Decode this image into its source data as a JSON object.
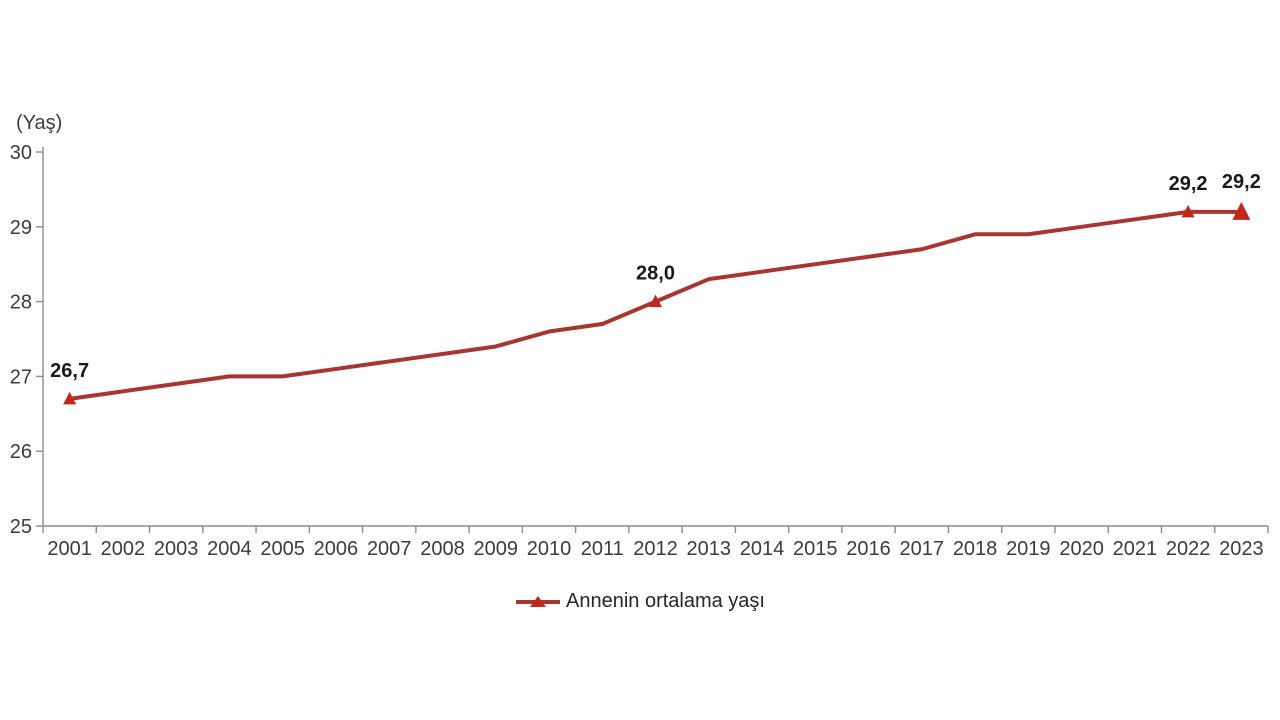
{
  "chart_data": {
    "type": "line",
    "title": "",
    "ylabel": "(Yaş)",
    "xlabel": "",
    "grid": false,
    "legend_position": "bottom-center",
    "ylim": [
      25,
      30
    ],
    "yticks": [
      25,
      26,
      27,
      28,
      29,
      30
    ],
    "categories": [
      "2001",
      "2002",
      "2003",
      "2004",
      "2005",
      "2006",
      "2007",
      "2008",
      "2009",
      "2010",
      "2011",
      "2012",
      "2013",
      "2014",
      "2015",
      "2016",
      "2017",
      "2018",
      "2019",
      "2020",
      "2021",
      "2022",
      "2023"
    ],
    "series": [
      {
        "name": "Annenin ortalama yaşı",
        "values": [
          26.7,
          26.8,
          26.9,
          27.0,
          27.0,
          27.1,
          27.2,
          27.3,
          27.4,
          27.6,
          27.7,
          28.0,
          28.3,
          28.4,
          28.5,
          28.6,
          28.7,
          28.9,
          28.9,
          29.0,
          29.1,
          29.2,
          29.2
        ]
      }
    ],
    "labeled_points": [
      {
        "year": "2001",
        "label": "26,7",
        "big": false
      },
      {
        "year": "2012",
        "label": "28,0",
        "big": false
      },
      {
        "year": "2022",
        "label": "29,2",
        "big": false
      },
      {
        "year": "2023",
        "label": "29,2",
        "big": true
      }
    ],
    "colors": {
      "background": "#FFFFFF",
      "line": "#A8352F",
      "marker": "#C1271B",
      "axis": "#8C8C8C",
      "tick_text": "#3C3C3C",
      "label_text": "#1A1A1A"
    }
  },
  "legend": {
    "label": "Annenin ortalama yaşı",
    "marker_icon": "triangle-line-marker"
  }
}
